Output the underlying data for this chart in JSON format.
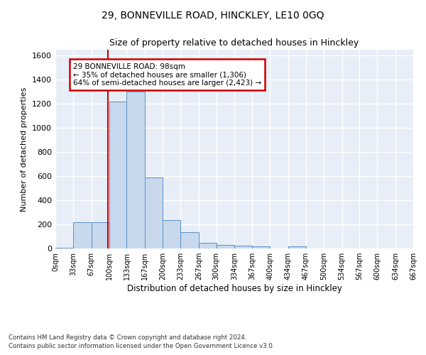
{
  "title": "29, BONNEVILLE ROAD, HINCKLEY, LE10 0GQ",
  "subtitle": "Size of property relative to detached houses in Hinckley",
  "xlabel": "Distribution of detached houses by size in Hinckley",
  "ylabel": "Number of detached properties",
  "bin_edges": [
    0,
    33,
    67,
    100,
    133,
    167,
    200,
    233,
    267,
    300,
    334,
    367,
    400,
    434,
    467,
    500,
    534,
    567,
    600,
    634,
    667
  ],
  "bar_heights": [
    5,
    220,
    220,
    1220,
    1300,
    590,
    238,
    135,
    50,
    30,
    25,
    15,
    0,
    15,
    0,
    0,
    0,
    0,
    0,
    0
  ],
  "bar_color": "#c9d9ed",
  "bar_edge_color": "#5a8fc3",
  "vline_x": 98,
  "vline_color": "#cc0000",
  "ylim": [
    0,
    1650
  ],
  "yticks": [
    0,
    200,
    400,
    600,
    800,
    1000,
    1200,
    1400,
    1600
  ],
  "annotation_text": "29 BONNEVILLE ROAD: 98sqm\n← 35% of detached houses are smaller (1,306)\n64% of semi-detached houses are larger (2,423) →",
  "annotation_box_color": "#cc0000",
  "footnote1": "Contains HM Land Registry data © Crown copyright and database right 2024.",
  "footnote2": "Contains public sector information licensed under the Open Government Licence v3.0.",
  "background_color": "#e8eef7",
  "grid_color": "#ffffff",
  "tick_labels": [
    "0sqm",
    "33sqm",
    "67sqm",
    "100sqm",
    "133sqm",
    "167sqm",
    "200sqm",
    "233sqm",
    "267sqm",
    "300sqm",
    "334sqm",
    "367sqm",
    "400sqm",
    "434sqm",
    "467sqm",
    "500sqm",
    "534sqm",
    "567sqm",
    "600sqm",
    "634sqm",
    "667sqm"
  ]
}
